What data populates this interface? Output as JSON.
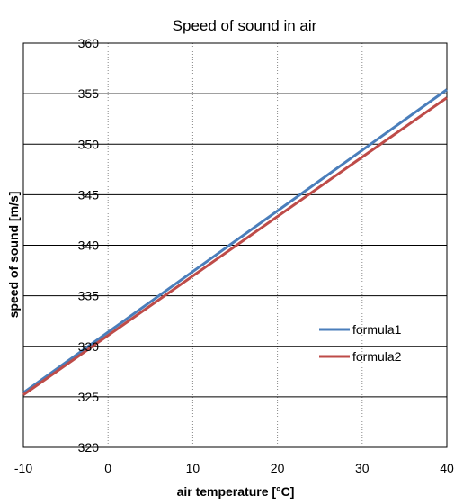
{
  "chart_data": {
    "type": "line",
    "title": "Speed of sound in air",
    "xlabel": "air temperature [°C]",
    "ylabel": "speed of sound [m/s]",
    "xlim": [
      -10,
      40
    ],
    "ylim": [
      320,
      360
    ],
    "xticks": [
      -10,
      0,
      10,
      20,
      30,
      40
    ],
    "yticks": [
      320,
      325,
      330,
      335,
      340,
      345,
      350,
      355,
      360
    ],
    "grid": {
      "vertical": "dotted",
      "horizontal": "solid"
    },
    "legend": "right",
    "series": [
      {
        "name": "formula1",
        "color": "#4a7ebb",
        "x": [
          -10,
          40
        ],
        "y": [
          325.4,
          355.4
        ]
      },
      {
        "name": "formula2",
        "color": "#be4b48",
        "x": [
          -10,
          40
        ],
        "y": [
          325.2,
          354.6
        ]
      }
    ]
  }
}
